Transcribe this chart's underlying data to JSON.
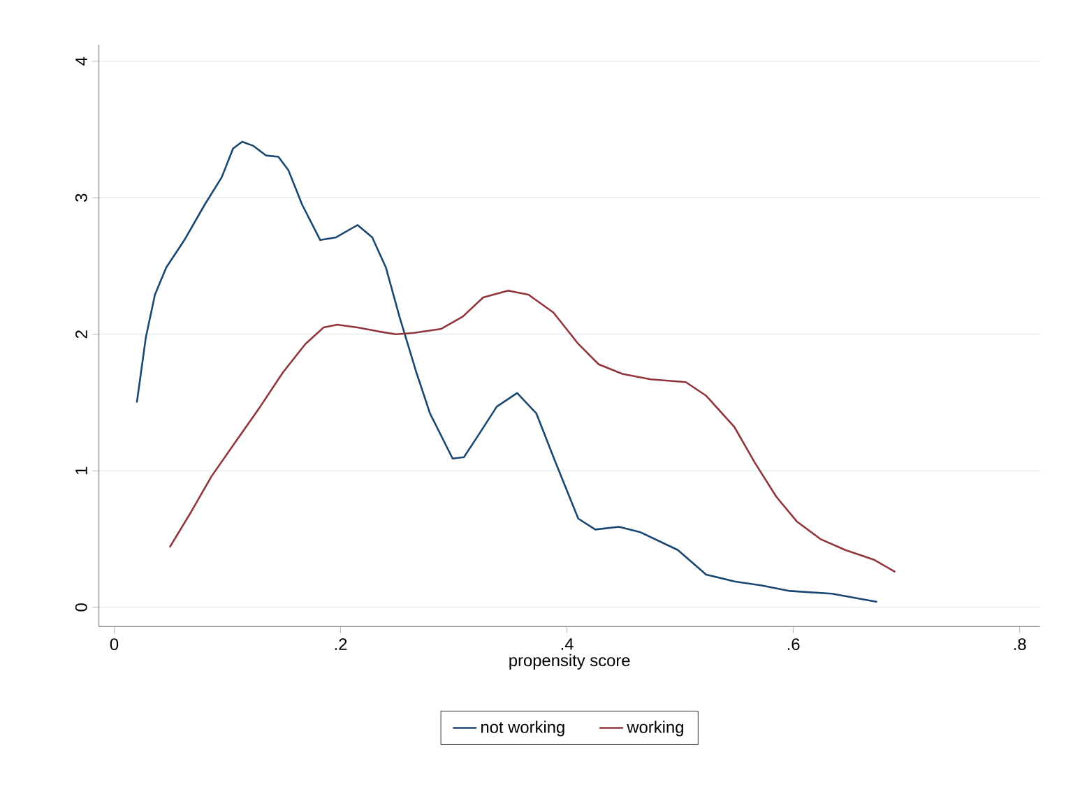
{
  "chart_data": {
    "type": "line",
    "xlabel": "propensity score",
    "xlim": [
      -0.0135,
      0.818
    ],
    "ylim": [
      -0.14,
      4.12
    ],
    "xticks": [
      0,
      {
        "value": 0.2,
        "label": ".2"
      },
      {
        "value": 0.4,
        "label": ".4"
      },
      {
        "value": 0.6,
        "label": ".6"
      },
      {
        "value": 0.8,
        "label": ".8"
      }
    ],
    "yticks": [
      0,
      1,
      2,
      3,
      4
    ],
    "grid": "y",
    "legend": "bottom",
    "line_style": "solid",
    "marker": "none",
    "series": [
      {
        "name": "not working",
        "color": "#1a476f",
        "x": [
          0.02,
          0.028,
          0.036,
          0.046,
          0.062,
          0.08,
          0.095,
          0.105,
          0.113,
          0.123,
          0.134,
          0.145,
          0.154,
          0.166,
          0.182,
          0.196,
          0.215,
          0.228,
          0.24,
          0.252,
          0.267,
          0.279,
          0.299,
          0.309,
          0.324,
          0.338,
          0.356,
          0.373,
          0.39,
          0.41,
          0.425,
          0.446,
          0.465,
          0.498,
          0.523,
          0.548,
          0.572,
          0.597,
          0.634,
          0.674
        ],
        "values": [
          1.5,
          1.98,
          2.29,
          2.49,
          2.69,
          2.95,
          3.15,
          3.36,
          3.41,
          3.38,
          3.31,
          3.3,
          3.2,
          2.95,
          2.69,
          2.71,
          2.8,
          2.71,
          2.49,
          2.13,
          1.72,
          1.42,
          1.09,
          1.1,
          1.29,
          1.47,
          1.57,
          1.42,
          1.06,
          0.65,
          0.57,
          0.59,
          0.55,
          0.42,
          0.24,
          0.19,
          0.16,
          0.12,
          0.1,
          0.04
        ]
      },
      {
        "name": "working",
        "color": "#90353b",
        "x": [
          0.049,
          0.068,
          0.086,
          0.107,
          0.129,
          0.149,
          0.169,
          0.185,
          0.197,
          0.215,
          0.234,
          0.249,
          0.265,
          0.289,
          0.308,
          0.326,
          0.348,
          0.366,
          0.388,
          0.41,
          0.428,
          0.449,
          0.474,
          0.505,
          0.523,
          0.548,
          0.566,
          0.585,
          0.603,
          0.624,
          0.646,
          0.671,
          0.69
        ],
        "values": [
          0.44,
          0.7,
          0.96,
          1.21,
          1.47,
          1.72,
          1.93,
          2.05,
          2.07,
          2.05,
          2.02,
          2.0,
          2.01,
          2.04,
          2.13,
          2.27,
          2.32,
          2.29,
          2.16,
          1.93,
          1.78,
          1.71,
          1.67,
          1.65,
          1.55,
          1.32,
          1.06,
          0.81,
          0.63,
          0.5,
          0.42,
          0.35,
          0.26
        ]
      }
    ]
  }
}
